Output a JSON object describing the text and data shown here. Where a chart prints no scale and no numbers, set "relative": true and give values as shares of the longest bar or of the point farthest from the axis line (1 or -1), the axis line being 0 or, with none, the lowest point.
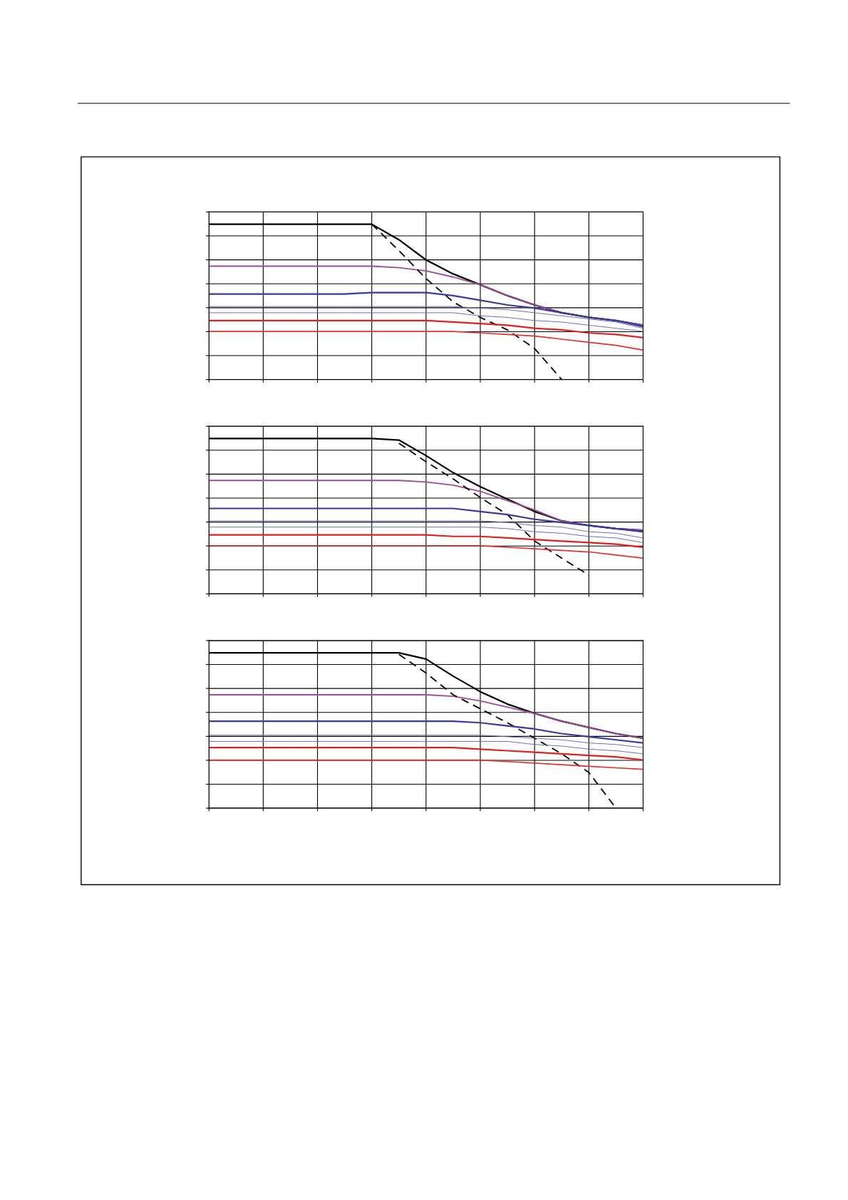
{
  "chart_data": [
    {
      "type": "line",
      "relative": true,
      "grid": true,
      "tick_labels": false,
      "categories": [
        null,
        null,
        null,
        null,
        null,
        null,
        null,
        null,
        null,
        null,
        null,
        null,
        null,
        null,
        null,
        null,
        null
      ],
      "series": [
        {
          "color": "#000000",
          "values": [
            1.0,
            1.0,
            1.0,
            1.0,
            1.0,
            1.0,
            1.0,
            0.9,
            0.77,
            0.68,
            0.61,
            0.54,
            0.48,
            0.43,
            0.4,
            0.38,
            0.35
          ]
        },
        {
          "color": "#a04a9a",
          "values": [
            0.73,
            0.73,
            0.73,
            0.73,
            0.73,
            0.73,
            0.73,
            0.72,
            0.7,
            0.66,
            0.61,
            0.54,
            0.48,
            0.43,
            0.4,
            0.38,
            0.35
          ]
        },
        {
          "color": "#000000",
          "line_style": "dashed",
          "values": [
            null,
            null,
            null,
            null,
            null,
            null,
            1.0,
            0.83,
            0.65,
            0.5,
            0.4,
            0.32,
            0.2,
            0.0,
            null,
            null,
            null
          ]
        },
        {
          "color": "#3a3a9a",
          "values": [
            0.55,
            0.55,
            0.55,
            0.55,
            0.55,
            0.55,
            0.56,
            0.56,
            0.56,
            0.54,
            0.51,
            0.48,
            0.46,
            0.43,
            0.4,
            0.38,
            0.34
          ]
        },
        {
          "color": "#6a6ab0",
          "values": [
            0.47,
            0.47,
            0.47,
            0.47,
            0.47,
            0.47,
            0.47,
            0.47,
            0.47,
            0.47,
            0.46,
            0.45,
            0.43,
            0.41,
            0.39,
            0.37,
            0.33
          ]
        },
        {
          "color": "#6a6ab0",
          "values": [
            0.43,
            0.43,
            0.43,
            0.43,
            0.43,
            0.43,
            0.43,
            0.43,
            0.43,
            0.43,
            0.41,
            0.4,
            0.38,
            0.37,
            0.35,
            0.33,
            0.31
          ]
        },
        {
          "color": "#e02020",
          "values": [
            0.38,
            0.38,
            0.38,
            0.38,
            0.38,
            0.38,
            0.38,
            0.38,
            0.38,
            0.37,
            0.36,
            0.35,
            0.33,
            0.32,
            0.3,
            0.29,
            0.27
          ]
        },
        {
          "color": "#e03030",
          "values": [
            0.31,
            0.31,
            0.31,
            0.31,
            0.31,
            0.31,
            0.31,
            0.31,
            0.31,
            0.31,
            0.3,
            0.29,
            0.28,
            0.26,
            0.24,
            0.22,
            0.19
          ]
        }
      ]
    },
    {
      "type": "line",
      "relative": true,
      "grid": true,
      "tick_labels": false,
      "categories": [
        null,
        null,
        null,
        null,
        null,
        null,
        null,
        null,
        null,
        null,
        null,
        null,
        null,
        null,
        null,
        null,
        null
      ],
      "series": [
        {
          "color": "#000000",
          "values": [
            1.0,
            1.0,
            1.0,
            1.0,
            1.0,
            1.0,
            1.0,
            0.99,
            0.89,
            0.78,
            0.69,
            0.61,
            0.53,
            0.47,
            0.44,
            0.42,
            0.41
          ]
        },
        {
          "color": "#a04a9a",
          "values": [
            0.73,
            0.73,
            0.73,
            0.73,
            0.73,
            0.73,
            0.73,
            0.73,
            0.72,
            0.7,
            0.66,
            0.6,
            0.54,
            0.47,
            0.44,
            0.42,
            0.41
          ]
        },
        {
          "color": "#000000",
          "line_style": "dashed",
          "values": [
            null,
            null,
            null,
            null,
            null,
            null,
            null,
            0.97,
            0.85,
            0.74,
            0.62,
            0.51,
            0.34,
            0.23,
            0.12,
            null,
            null
          ]
        },
        {
          "color": "#3a3a9a",
          "values": [
            0.55,
            0.55,
            0.55,
            0.55,
            0.55,
            0.55,
            0.55,
            0.55,
            0.55,
            0.55,
            0.53,
            0.51,
            0.48,
            0.46,
            0.44,
            0.42,
            0.4
          ]
        },
        {
          "color": "#6a6ab0",
          "values": [
            0.47,
            0.47,
            0.47,
            0.47,
            0.47,
            0.47,
            0.47,
            0.47,
            0.47,
            0.47,
            0.47,
            0.46,
            0.44,
            0.43,
            0.4,
            0.39,
            0.36
          ]
        },
        {
          "color": "#6a6ab0",
          "values": [
            0.43,
            0.43,
            0.43,
            0.43,
            0.43,
            0.43,
            0.43,
            0.43,
            0.43,
            0.43,
            0.43,
            0.42,
            0.4,
            0.39,
            0.37,
            0.36,
            0.33
          ]
        },
        {
          "color": "#e02020",
          "values": [
            0.38,
            0.38,
            0.38,
            0.38,
            0.38,
            0.38,
            0.38,
            0.38,
            0.38,
            0.37,
            0.37,
            0.36,
            0.35,
            0.34,
            0.33,
            0.32,
            0.3
          ]
        },
        {
          "color": "#e03030",
          "values": [
            0.31,
            0.31,
            0.31,
            0.31,
            0.31,
            0.31,
            0.31,
            0.31,
            0.31,
            0.31,
            0.31,
            0.3,
            0.29,
            0.28,
            0.27,
            0.25,
            0.23
          ]
        }
      ]
    },
    {
      "type": "line",
      "relative": true,
      "grid": true,
      "tick_labels": false,
      "categories": [
        null,
        null,
        null,
        null,
        null,
        null,
        null,
        null,
        null,
        null,
        null,
        null,
        null,
        null,
        null,
        null,
        null
      ],
      "series": [
        {
          "color": "#000000",
          "values": [
            1.0,
            1.0,
            1.0,
            1.0,
            1.0,
            1.0,
            1.0,
            1.0,
            0.96,
            0.85,
            0.75,
            0.67,
            0.61,
            0.56,
            0.52,
            0.48,
            0.45
          ]
        },
        {
          "color": "#a04a9a",
          "values": [
            0.73,
            0.73,
            0.73,
            0.73,
            0.73,
            0.73,
            0.73,
            0.73,
            0.73,
            0.72,
            0.69,
            0.65,
            0.61,
            0.56,
            0.52,
            0.48,
            0.45
          ]
        },
        {
          "color": "#000000",
          "line_style": "dashed",
          "values": [
            null,
            null,
            null,
            null,
            null,
            null,
            null,
            0.99,
            0.87,
            0.73,
            0.64,
            0.55,
            0.45,
            0.35,
            0.23,
            0.0,
            null
          ]
        },
        {
          "color": "#3a3a9a",
          "values": [
            0.56,
            0.56,
            0.56,
            0.56,
            0.56,
            0.56,
            0.56,
            0.56,
            0.56,
            0.56,
            0.55,
            0.53,
            0.51,
            0.48,
            0.46,
            0.44,
            0.42
          ]
        },
        {
          "color": "#6a6ab0",
          "values": [
            0.47,
            0.47,
            0.47,
            0.47,
            0.47,
            0.47,
            0.47,
            0.47,
            0.47,
            0.47,
            0.47,
            0.46,
            0.45,
            0.44,
            0.42,
            0.41,
            0.39
          ]
        },
        {
          "color": "#6a6ab0",
          "values": [
            0.43,
            0.43,
            0.43,
            0.43,
            0.43,
            0.43,
            0.43,
            0.43,
            0.43,
            0.43,
            0.43,
            0.43,
            0.41,
            0.4,
            0.38,
            0.37,
            0.35
          ]
        },
        {
          "color": "#e02020",
          "values": [
            0.39,
            0.39,
            0.39,
            0.39,
            0.39,
            0.39,
            0.39,
            0.39,
            0.39,
            0.39,
            0.38,
            0.37,
            0.36,
            0.35,
            0.34,
            0.33,
            0.31
          ]
        },
        {
          "color": "#e03030",
          "values": [
            0.31,
            0.31,
            0.31,
            0.31,
            0.31,
            0.31,
            0.31,
            0.31,
            0.31,
            0.31,
            0.31,
            0.3,
            0.29,
            0.28,
            0.27,
            0.26,
            0.25
          ]
        }
      ]
    }
  ]
}
